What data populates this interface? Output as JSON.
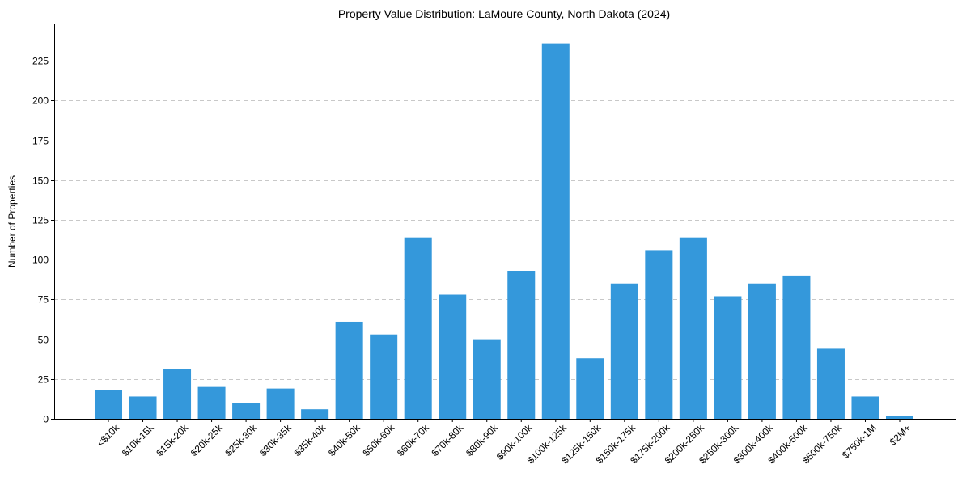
{
  "chart_data": {
    "type": "bar",
    "title": "Property Value Distribution: LaMoure County, North Dakota (2024)",
    "xlabel": "",
    "ylabel": "Number of Properties",
    "categories": [
      "<$10k",
      "$10k-15k",
      "$15k-20k",
      "$20k-25k",
      "$25k-30k",
      "$30k-35k",
      "$35k-40k",
      "$40k-50k",
      "$50k-60k",
      "$60k-70k",
      "$70k-80k",
      "$80k-90k",
      "$90k-100k",
      "$100k-125k",
      "$125k-150k",
      "$150k-175k",
      "$175k-200k",
      "$200k-250k",
      "$250k-300k",
      "$300k-400k",
      "$400k-500k",
      "$500k-750k",
      "$750k-1M",
      "$2M+"
    ],
    "values": [
      18,
      14,
      31,
      20,
      10,
      19,
      6,
      61,
      53,
      114,
      78,
      50,
      93,
      236,
      38,
      85,
      106,
      114,
      77,
      85,
      90,
      44,
      14,
      2
    ],
    "ylim": [
      0,
      248
    ],
    "yticks": [
      0,
      25,
      50,
      75,
      100,
      125,
      150,
      175,
      200,
      225
    ],
    "grid": true,
    "bar_color": "#3498db"
  }
}
